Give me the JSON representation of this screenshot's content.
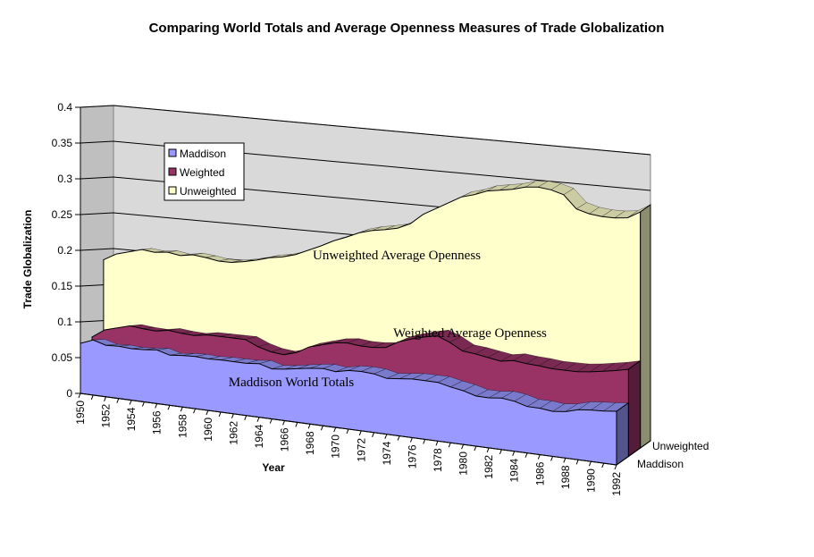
{
  "chart_data": {
    "type": "area",
    "title": "Comparing World Totals and Average Openness Measures of Trade Globalization",
    "ylabel": "Trade Globalization",
    "xlabel": "Year",
    "ylim": [
      0,
      0.4
    ],
    "yticks": [
      "0",
      "0.05",
      "0.1",
      "0.15",
      "0.2",
      "0.25",
      "0.3",
      "0.35",
      "0.4"
    ],
    "x": [
      1950,
      1951,
      1952,
      1953,
      1954,
      1955,
      1956,
      1957,
      1958,
      1959,
      1960,
      1961,
      1962,
      1963,
      1964,
      1965,
      1966,
      1967,
      1968,
      1969,
      1970,
      1971,
      1972,
      1973,
      1974,
      1975,
      1976,
      1977,
      1978,
      1979,
      1980,
      1981,
      1982,
      1983,
      1984,
      1985,
      1986,
      1987,
      1988,
      1989,
      1990,
      1991,
      1992
    ],
    "xtick_labels": [
      "1950",
      "1952",
      "1954",
      "1956",
      "1958",
      "1960",
      "1962",
      "1964",
      "1966",
      "1968",
      "1970",
      "1972",
      "1974",
      "1976",
      "1978",
      "1980",
      "1982",
      "1984",
      "1986",
      "1988",
      "1990",
      "1992"
    ],
    "series": [
      {
        "name": "Unweighted",
        "color": "#ffffcc",
        "values": [
          0.185,
          0.195,
          0.2,
          0.205,
          0.203,
          0.205,
          0.202,
          0.205,
          0.203,
          0.2,
          0.2,
          0.203,
          0.207,
          0.212,
          0.215,
          0.22,
          0.228,
          0.236,
          0.245,
          0.252,
          0.26,
          0.265,
          0.268,
          0.272,
          0.28,
          0.295,
          0.305,
          0.315,
          0.325,
          0.33,
          0.337,
          0.34,
          0.343,
          0.348,
          0.35,
          0.348,
          0.343,
          0.325,
          0.32,
          0.318,
          0.318,
          0.32,
          0.33
        ]
      },
      {
        "name": "Weighted",
        "color": "#993366",
        "values": [
          0.078,
          0.09,
          0.095,
          0.1,
          0.098,
          0.097,
          0.1,
          0.098,
          0.097,
          0.1,
          0.1,
          0.1,
          0.1,
          0.092,
          0.087,
          0.085,
          0.09,
          0.1,
          0.105,
          0.11,
          0.112,
          0.11,
          0.11,
          0.112,
          0.122,
          0.128,
          0.133,
          0.137,
          0.13,
          0.12,
          0.118,
          0.115,
          0.112,
          0.115,
          0.113,
          0.112,
          0.11,
          0.11,
          0.11,
          0.112,
          0.115,
          0.118,
          0.122
        ]
      },
      {
        "name": "Maddison",
        "color": "#9999ff",
        "values": [
          0.07,
          0.077,
          0.072,
          0.073,
          0.072,
          0.073,
          0.075,
          0.07,
          0.072,
          0.073,
          0.072,
          0.073,
          0.073,
          0.073,
          0.075,
          0.07,
          0.072,
          0.075,
          0.078,
          0.08,
          0.078,
          0.082,
          0.083,
          0.082,
          0.078,
          0.08,
          0.082,
          0.082,
          0.082,
          0.078,
          0.075,
          0.07,
          0.07,
          0.072,
          0.07,
          0.065,
          0.065,
          0.063,
          0.065,
          0.07,
          0.072,
          0.073,
          0.075
        ]
      }
    ],
    "legend": {
      "position": "top-left",
      "items": [
        {
          "label": "Maddison",
          "color": "#9999ff"
        },
        {
          "label": "Weighted",
          "color": "#993366"
        },
        {
          "label": "Unweighted",
          "color": "#ffffcc"
        }
      ]
    },
    "area_labels": {
      "unweighted": "Unweighted Average Openness",
      "weighted": "Weighted Average Openness",
      "maddison": "Maddison World Totals"
    },
    "depth_labels": [
      "Unweighted",
      "Maddison"
    ],
    "wall_color": "#d9d9d9",
    "grid": true
  }
}
